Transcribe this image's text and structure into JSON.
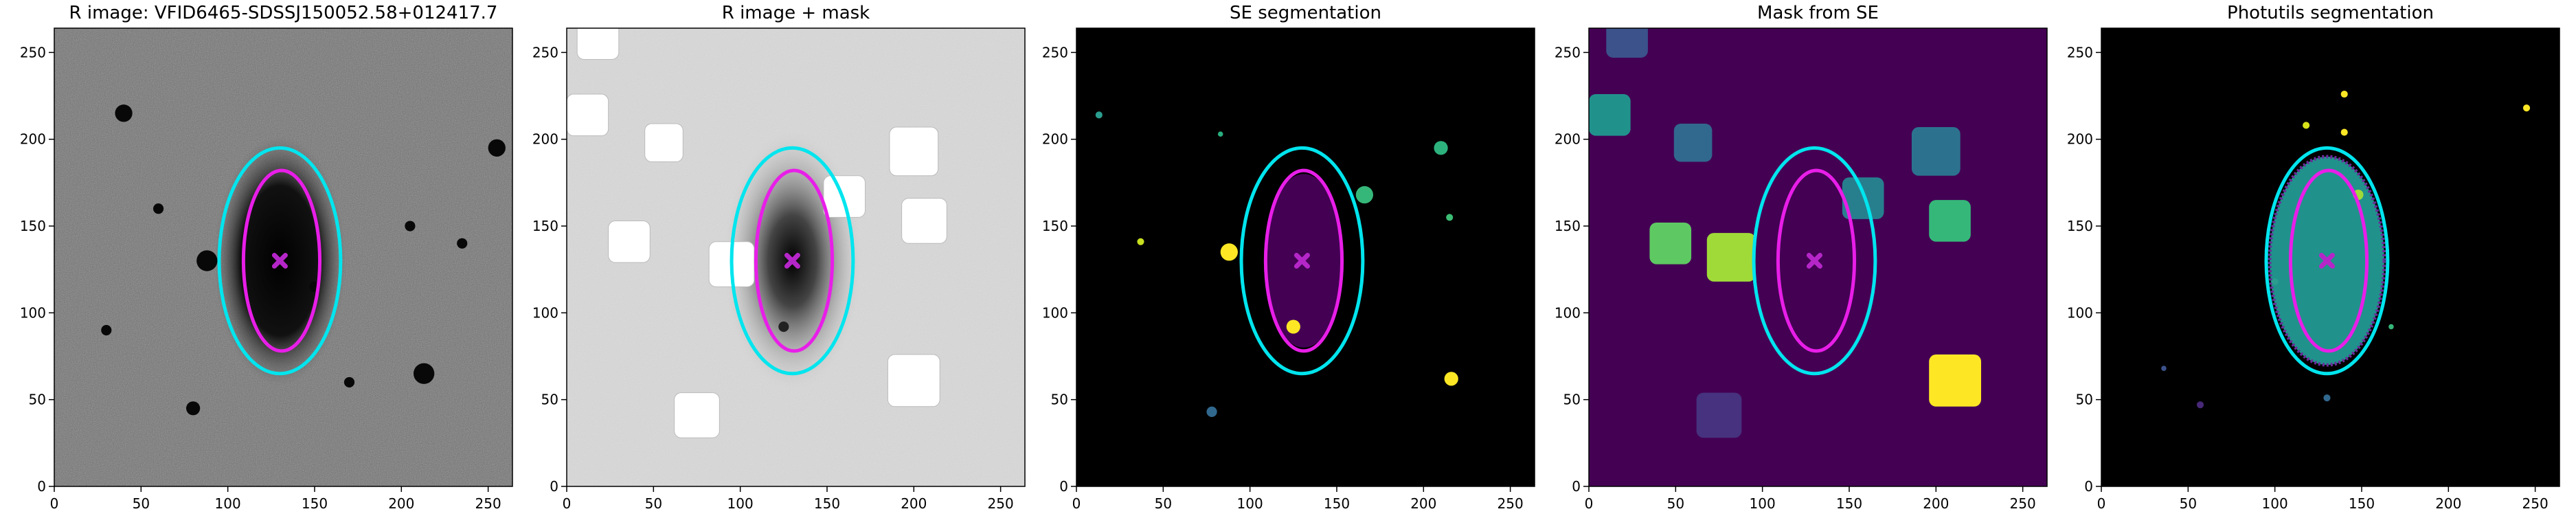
{
  "chart_data": [
    {
      "type": "image",
      "title": "R image: VFID6465-SDSSJ150052.58+012417.7",
      "xlim": [
        0,
        264
      ],
      "ylim": [
        0,
        264
      ],
      "xticks": [
        0,
        50,
        100,
        150,
        200,
        250
      ],
      "yticks": [
        0,
        50,
        100,
        150,
        200,
        250
      ],
      "ellipses": [
        {
          "cx": 130,
          "cy": 130,
          "rx": 35,
          "ry": 65,
          "color": "#00e5ee"
        },
        {
          "cx": 131,
          "cy": 130,
          "rx": 22,
          "ry": 52,
          "color": "#e81ee8"
        }
      ],
      "marker": {
        "x": 130,
        "y": 130,
        "color": "#b526c8"
      }
    },
    {
      "type": "image",
      "title": "R image + mask",
      "xlim": [
        0,
        264
      ],
      "ylim": [
        0,
        264
      ],
      "xticks": [
        0,
        50,
        100,
        150,
        200,
        250
      ],
      "yticks": [
        0,
        50,
        100,
        150,
        200,
        250
      ],
      "ellipses": [
        {
          "cx": 130,
          "cy": 130,
          "rx": 35,
          "ry": 65,
          "color": "#00e5ee"
        },
        {
          "cx": 131,
          "cy": 130,
          "rx": 22,
          "ry": 52,
          "color": "#e81ee8"
        }
      ],
      "marker": {
        "x": 130,
        "y": 130,
        "color": "#b526c8"
      }
    },
    {
      "type": "image",
      "title": "SE segmentation",
      "xlim": [
        0,
        264
      ],
      "ylim": [
        0,
        264
      ],
      "xticks": [
        0,
        50,
        100,
        150,
        200,
        250
      ],
      "yticks": [
        0,
        50,
        100,
        150,
        200,
        250
      ],
      "ellipses": [
        {
          "cx": 130,
          "cy": 130,
          "rx": 35,
          "ry": 65,
          "color": "#00e5ee"
        },
        {
          "cx": 131,
          "cy": 130,
          "rx": 22,
          "ry": 52,
          "color": "#e81ee8"
        }
      ],
      "marker": {
        "x": 130,
        "y": 130,
        "color": "#b526c8"
      }
    },
    {
      "type": "image",
      "title": "Mask from SE",
      "xlim": [
        0,
        264
      ],
      "ylim": [
        0,
        264
      ],
      "xticks": [
        0,
        50,
        100,
        150,
        200,
        250
      ],
      "yticks": [
        0,
        50,
        100,
        150,
        200,
        250
      ],
      "ellipses": [
        {
          "cx": 130,
          "cy": 130,
          "rx": 35,
          "ry": 65,
          "color": "#00e5ee"
        },
        {
          "cx": 131,
          "cy": 130,
          "rx": 22,
          "ry": 52,
          "color": "#e81ee8"
        }
      ],
      "marker": {
        "x": 130,
        "y": 130,
        "color": "#b526c8"
      }
    },
    {
      "type": "image",
      "title": "Photutils segmentation",
      "xlim": [
        0,
        264
      ],
      "ylim": [
        0,
        264
      ],
      "xticks": [
        0,
        50,
        100,
        150,
        200,
        250
      ],
      "yticks": [
        0,
        50,
        100,
        150,
        200,
        250
      ],
      "ellipses": [
        {
          "cx": 130,
          "cy": 130,
          "rx": 35,
          "ry": 65,
          "color": "#00e5ee"
        },
        {
          "cx": 131,
          "cy": 130,
          "rx": 22,
          "ry": 52,
          "color": "#e81ee8"
        }
      ],
      "marker": {
        "x": 130,
        "y": 130,
        "color": "#b526c8"
      }
    }
  ]
}
